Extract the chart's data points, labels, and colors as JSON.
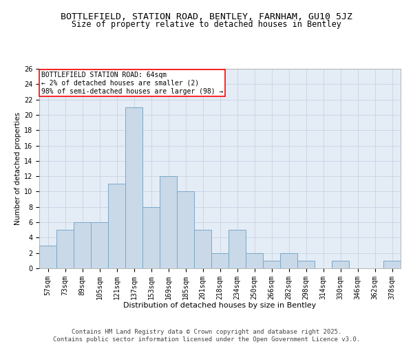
{
  "title1": "BOTTLEFIELD, STATION ROAD, BENTLEY, FARNHAM, GU10 5JZ",
  "title2": "Size of property relative to detached houses in Bentley",
  "xlabel": "Distribution of detached houses by size in Bentley",
  "ylabel": "Number of detached properties",
  "categories": [
    "57sqm",
    "73sqm",
    "89sqm",
    "105sqm",
    "121sqm",
    "137sqm",
    "153sqm",
    "169sqm",
    "185sqm",
    "201sqm",
    "218sqm",
    "234sqm",
    "250sqm",
    "266sqm",
    "282sqm",
    "298sqm",
    "314sqm",
    "330sqm",
    "346sqm",
    "362sqm",
    "378sqm"
  ],
  "values": [
    3,
    5,
    6,
    6,
    11,
    21,
    8,
    12,
    10,
    5,
    2,
    5,
    2,
    1,
    2,
    1,
    0,
    1,
    0,
    0,
    1
  ],
  "bar_color": "#c9d9e8",
  "bar_edge_color": "#7aa8c8",
  "annotation_box_text": "BOTTLEFIELD STATION ROAD: 64sqm\n← 2% of detached houses are smaller (2)\n98% of semi-detached houses are larger (98) →",
  "annotation_box_color": "white",
  "annotation_box_edge_color": "red",
  "ylim": [
    0,
    26
  ],
  "yticks": [
    0,
    2,
    4,
    6,
    8,
    10,
    12,
    14,
    16,
    18,
    20,
    22,
    24,
    26
  ],
  "grid_color": "#c8d4e4",
  "background_color": "#e4ecf6",
  "footer_text": "Contains HM Land Registry data © Crown copyright and database right 2025.\nContains public sector information licensed under the Open Government Licence v3.0.",
  "title1_fontsize": 9.5,
  "title2_fontsize": 8.5,
  "xlabel_fontsize": 8,
  "ylabel_fontsize": 7.5,
  "tick_fontsize": 7,
  "annotation_fontsize": 7,
  "footer_fontsize": 6.5
}
